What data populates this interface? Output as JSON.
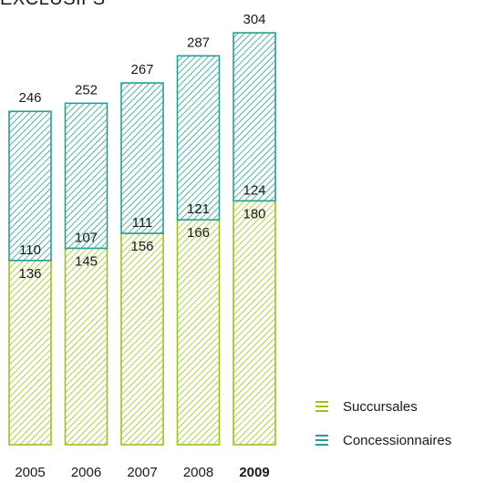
{
  "title": "EXCLUSIFS",
  "chart_data": {
    "type": "bar",
    "stacked": true,
    "categories": [
      "2005",
      "2006",
      "2007",
      "2008",
      "2009"
    ],
    "highlight_category": "2009",
    "series": [
      {
        "name": "Succursales",
        "values": [
          136,
          145,
          156,
          166,
          180
        ],
        "color": "#9bc31f"
      },
      {
        "name": "Concessionnaires",
        "values": [
          110,
          107,
          111,
          121,
          124
        ],
        "color": "#2a9d94"
      }
    ],
    "totals": [
      246,
      252,
      267,
      287,
      304
    ],
    "ylim": [
      0,
      304
    ],
    "grid": false,
    "legend_position": "bottom-right"
  }
}
